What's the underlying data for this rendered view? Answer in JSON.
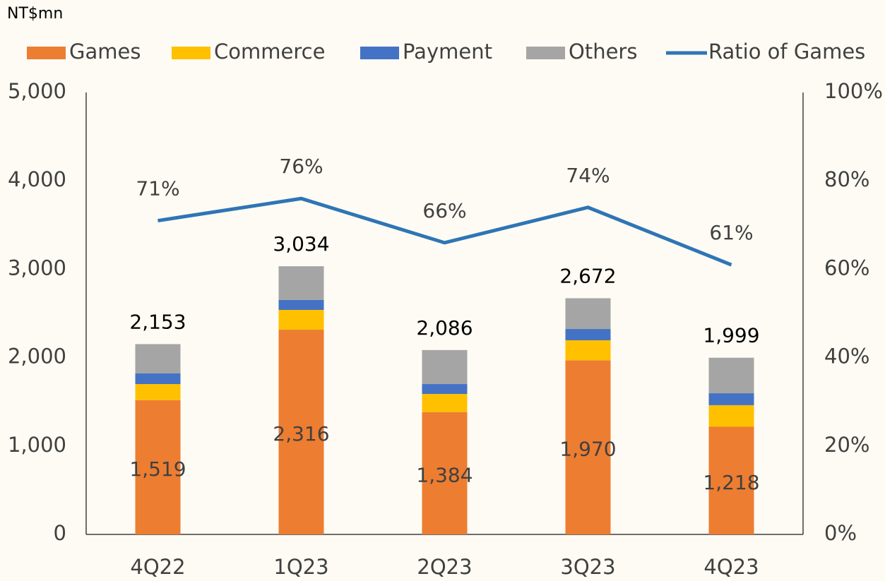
{
  "chart_data": {
    "type": "bar",
    "stacked": true,
    "y_axis_label": "NT$mn",
    "categories": [
      "4Q22",
      "1Q23",
      "2Q23",
      "3Q23",
      "4Q23"
    ],
    "series": [
      {
        "name": "Games",
        "color": "#ed7d31",
        "values": [
          1519,
          2316,
          1384,
          1970,
          1218
        ],
        "value_labels": [
          "1,519",
          "2,316",
          "1,384",
          "1,970",
          "1,218"
        ]
      },
      {
        "name": "Commerce",
        "color": "#ffc000",
        "values": [
          182,
          224,
          205,
          226,
          244
        ]
      },
      {
        "name": "Payment",
        "color": "#4472c4",
        "values": [
          120,
          112,
          112,
          128,
          135
        ]
      },
      {
        "name": "Others",
        "color": "#a5a5a5",
        "values": [
          332,
          382,
          385,
          348,
          402
        ]
      },
      {
        "name": "Ratio of Games",
        "type": "line",
        "axis": "y2",
        "color": "#2e75b6",
        "values": [
          71,
          76,
          66,
          74,
          61
        ],
        "value_labels": [
          "71%",
          "76%",
          "66%",
          "74%",
          "61%"
        ]
      }
    ],
    "totals": [
      2153,
      3034,
      2086,
      2672,
      1999
    ],
    "total_labels": [
      "2,153",
      "3,034",
      "2,086",
      "2,672",
      "1,999"
    ],
    "ylim": [
      0,
      5000
    ],
    "yticks": [
      0,
      {
        "value": 1000,
        "label": "1,000"
      },
      {
        "value": 2000,
        "label": "2,000"
      },
      {
        "value": 3000,
        "label": "3,000"
      },
      {
        "value": 4000,
        "label": "4,000"
      },
      {
        "value": 5000,
        "label": "5,000"
      }
    ],
    "y2lim": [
      0,
      100
    ],
    "y2ticks": [
      {
        "value": 0,
        "label": "0%"
      },
      {
        "value": 20,
        "label": "20%"
      },
      {
        "value": 40,
        "label": "40%"
      },
      {
        "value": 60,
        "label": "60%"
      },
      {
        "value": 80,
        "label": "80%"
      },
      {
        "value": 100,
        "label": "100%"
      }
    ],
    "grid": false,
    "legend": "top"
  }
}
